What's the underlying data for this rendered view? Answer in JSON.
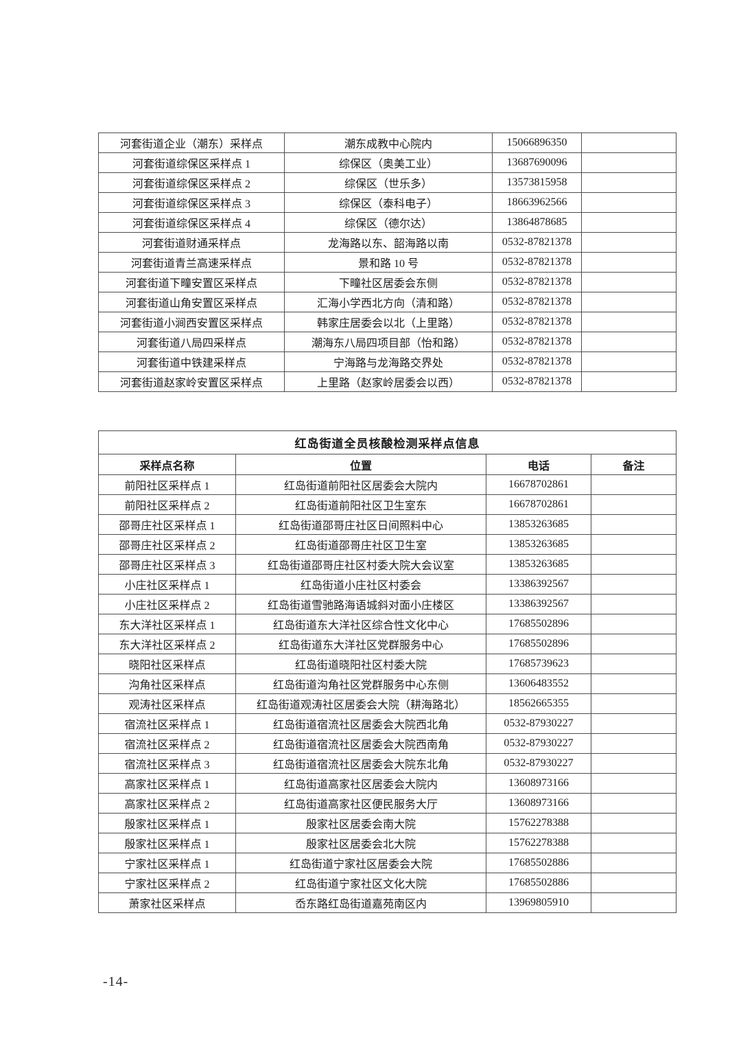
{
  "page": {
    "page_number": "-14-"
  },
  "table_hetao": {
    "column_keys": [
      "name",
      "location",
      "phone",
      "note"
    ],
    "rows": [
      {
        "name": "河套街道企业（潮东）采样点",
        "location": "潮东成教中心院内",
        "phone": "15066896350",
        "note": ""
      },
      {
        "name": "河套街道综保区采样点 1",
        "location": "综保区（奥美工业）",
        "phone": "13687690096",
        "note": ""
      },
      {
        "name": "河套街道综保区采样点 2",
        "location": "综保区（世乐多）",
        "phone": "13573815958",
        "note": ""
      },
      {
        "name": "河套街道综保区采样点 3",
        "location": "综保区（泰科电子）",
        "phone": "18663962566",
        "note": ""
      },
      {
        "name": "河套街道综保区采样点 4",
        "location": "综保区（德尔达）",
        "phone": "13864878685",
        "note": ""
      },
      {
        "name": "河套街道财通采样点",
        "location": "龙海路以东、韶海路以南",
        "phone": "0532-87821378",
        "note": ""
      },
      {
        "name": "河套街道青兰高速采样点",
        "location": "景和路 10 号",
        "phone": "0532-87821378",
        "note": ""
      },
      {
        "name": "河套街道下疃安置区采样点",
        "location": "下疃社区居委会东侧",
        "phone": "0532-87821378",
        "note": ""
      },
      {
        "name": "河套街道山角安置区采样点",
        "location": "汇海小学西北方向（清和路）",
        "phone": "0532-87821378",
        "note": ""
      },
      {
        "name": "河套街道小涧西安置区采样点",
        "location": "韩家庄居委会以北（上里路）",
        "phone": "0532-87821378",
        "note": ""
      },
      {
        "name": "河套街道八局四采样点",
        "location": "潮海东八局四项目部（怡和路）",
        "phone": "0532-87821378",
        "note": ""
      },
      {
        "name": "河套街道中铁建采样点",
        "location": "宁海路与龙海路交界处",
        "phone": "0532-87821378",
        "note": ""
      },
      {
        "name": "河套街道赵家岭安置区采样点",
        "location": "上里路（赵家岭居委会以西）",
        "phone": "0532-87821378",
        "note": ""
      }
    ]
  },
  "table_hongdao": {
    "title": "红岛街道全员核酸检测采样点信息",
    "headers": [
      "采样点名称",
      "位置",
      "电话",
      "备注"
    ],
    "column_keys": [
      "name",
      "location",
      "phone",
      "note"
    ],
    "rows": [
      {
        "name": "前阳社区采样点 1",
        "location": "红岛街道前阳社区居委会大院内",
        "phone": "16678702861",
        "note": ""
      },
      {
        "name": "前阳社区采样点 2",
        "location": "红岛街道前阳社区卫生室东",
        "phone": "16678702861",
        "note": ""
      },
      {
        "name": "邵哥庄社区采样点 1",
        "location": "红岛街道邵哥庄社区日间照料中心",
        "phone": "13853263685",
        "note": ""
      },
      {
        "name": "邵哥庄社区采样点 2",
        "location": "红岛街道邵哥庄社区卫生室",
        "phone": "13853263685",
        "note": ""
      },
      {
        "name": "邵哥庄社区采样点 3",
        "location": "红岛街道邵哥庄社区村委大院大会议室",
        "phone": "13853263685",
        "note": ""
      },
      {
        "name": "小庄社区采样点 1",
        "location": "红岛街道小庄社区村委会",
        "phone": "13386392567",
        "note": ""
      },
      {
        "name": "小庄社区采样点 2",
        "location": "红岛街道雪驰路海语城斜对面小庄楼区",
        "phone": "13386392567",
        "note": ""
      },
      {
        "name": "东大洋社区采样点 1",
        "location": "红岛街道东大洋社区综合性文化中心",
        "phone": "17685502896",
        "note": ""
      },
      {
        "name": "东大洋社区采样点 2",
        "location": "红岛街道东大洋社区党群服务中心",
        "phone": "17685502896",
        "note": ""
      },
      {
        "name": "晓阳社区采样点",
        "location": "红岛街道晓阳社区村委大院",
        "phone": "17685739623",
        "note": ""
      },
      {
        "name": "沟角社区采样点",
        "location": "红岛街道沟角社区党群服务中心东侧",
        "phone": "13606483552",
        "note": ""
      },
      {
        "name": "观涛社区采样点",
        "location": "红岛街道观涛社区居委会大院（耕海路北）",
        "phone": "18562665355",
        "note": ""
      },
      {
        "name": "宿流社区采样点 1",
        "location": "红岛街道宿流社区居委会大院西北角",
        "phone": "0532-87930227",
        "note": ""
      },
      {
        "name": "宿流社区采样点 2",
        "location": "红岛街道宿流社区居委会大院西南角",
        "phone": "0532-87930227",
        "note": ""
      },
      {
        "name": "宿流社区采样点 3",
        "location": "红岛街道宿流社区居委会大院东北角",
        "phone": "0532-87930227",
        "note": ""
      },
      {
        "name": "高家社区采样点 1",
        "location": "红岛街道高家社区居委会大院内",
        "phone": "13608973166",
        "note": ""
      },
      {
        "name": "高家社区采样点 2",
        "location": "红岛街道高家社区便民服务大厅",
        "phone": "13608973166",
        "note": ""
      },
      {
        "name": "殷家社区采样点 1",
        "location": "殷家社区居委会南大院",
        "phone": "15762278388",
        "note": ""
      },
      {
        "name": "殷家社区采样点 1",
        "location": "殷家社区居委会北大院",
        "phone": "15762278388",
        "note": ""
      },
      {
        "name": "宁家社区采样点 1",
        "location": "红岛街道宁家社区居委会大院",
        "phone": "17685502886",
        "note": ""
      },
      {
        "name": "宁家社区采样点 2",
        "location": "红岛街道宁家社区文化大院",
        "phone": "17685502886",
        "note": ""
      },
      {
        "name": "萧家社区采样点",
        "location": "岙东路红岛街道嘉苑南区内",
        "phone": "13969805910",
        "note": ""
      }
    ]
  }
}
